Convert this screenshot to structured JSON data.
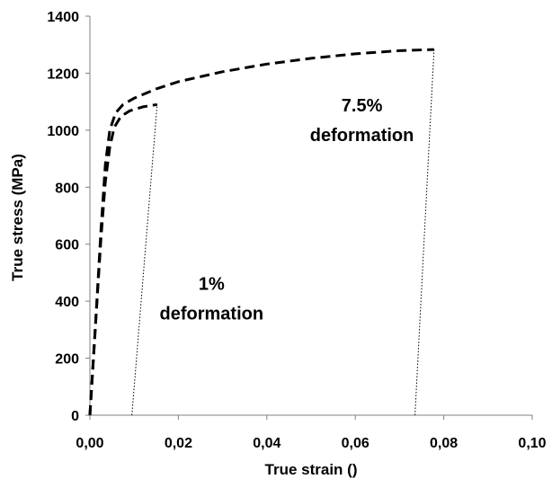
{
  "chart_data": {
    "type": "line",
    "title": "",
    "xlabel": "True strain ()",
    "ylabel": "True stress (MPa)",
    "xlim": [
      0,
      0.1
    ],
    "ylim": [
      0,
      1400
    ],
    "x_ticks": [
      "0,00",
      "0,02",
      "0,04",
      "0,06",
      "0,08",
      "0,10"
    ],
    "x_tick_values": [
      0,
      0.02,
      0.04,
      0.06,
      0.08,
      0.1
    ],
    "y_ticks": [
      "0",
      "200",
      "400",
      "600",
      "800",
      "1000",
      "1200",
      "1400"
    ],
    "y_tick_values": [
      0,
      200,
      400,
      600,
      800,
      1000,
      1200,
      1400
    ],
    "grid": false,
    "legend": "none",
    "series": [
      {
        "style": "dashed",
        "color": "#000000",
        "x": [
          0.0,
          0.0012,
          0.0025,
          0.0035,
          0.0045,
          0.0055,
          0.007,
          0.009,
          0.012,
          0.0152
        ],
        "y": [
          0,
          300,
          620,
          820,
          940,
          1010,
          1048,
          1068,
          1082,
          1090
        ]
      },
      {
        "style": "dashed",
        "color": "#000000",
        "x": [
          0.0,
          0.0012,
          0.0025,
          0.0035,
          0.0045,
          0.0058,
          0.0075,
          0.01,
          0.015,
          0.02,
          0.03,
          0.04,
          0.05,
          0.06,
          0.07,
          0.0778
        ],
        "y": [
          0,
          300,
          650,
          880,
          1000,
          1060,
          1090,
          1112,
          1145,
          1170,
          1205,
          1232,
          1252,
          1268,
          1279,
          1283
        ]
      },
      {
        "style": "dotted",
        "color": "#000000",
        "x": [
          0.0095,
          0.0152
        ],
        "y": [
          0,
          1090
        ]
      },
      {
        "style": "dotted",
        "color": "#000000",
        "x": [
          0.0735,
          0.0778
        ],
        "y": [
          0,
          1283
        ]
      }
    ],
    "annotations": [
      {
        "lines": [
          "1%",
          "deformation"
        ],
        "x": 0.0275,
        "y": 440
      },
      {
        "lines": [
          "7.5%",
          "deformation"
        ],
        "x": 0.0615,
        "y": 1065
      }
    ]
  }
}
